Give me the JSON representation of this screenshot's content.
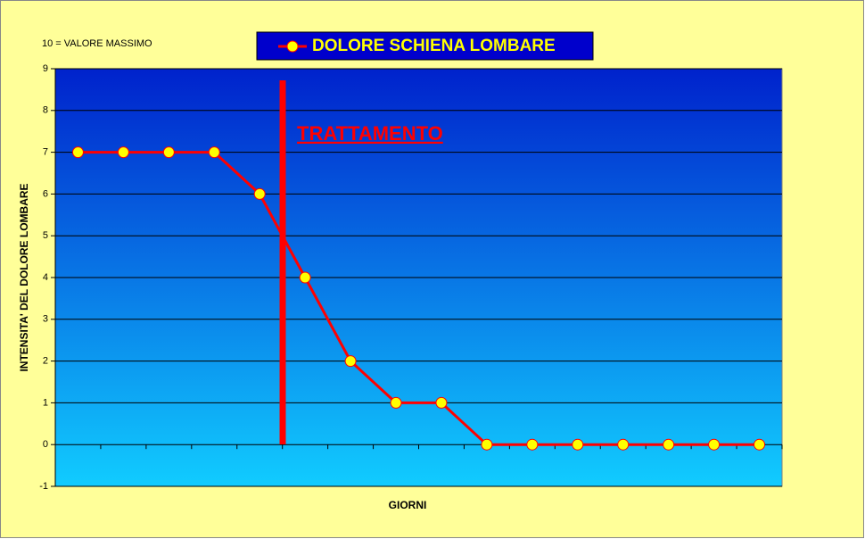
{
  "chart_data": {
    "type": "line",
    "annotations": [
      "10 = VALORE MASSIMO",
      "TRATTAMENTO"
    ],
    "x_label": "GIORNI",
    "y_label": "INTENSITA' DEL DOLORE LOMBARE",
    "categories": [
      null,
      null,
      null,
      null,
      null,
      null,
      null,
      null,
      null,
      null,
      null,
      null,
      null,
      null,
      null,
      null
    ],
    "series": [
      {
        "name": "DOLORE SCHIENA LOMBARE",
        "color": "#ff0000",
        "marker_color": "#ffff00",
        "values": [
          7,
          7,
          7,
          7,
          6,
          4,
          2,
          1,
          1,
          0,
          0,
          0,
          0,
          0,
          0,
          0
        ]
      }
    ],
    "ylim": [
      -1,
      9
    ],
    "yticks": [
      -1,
      0,
      1,
      2,
      3,
      4,
      5,
      6,
      7,
      8,
      9
    ],
    "grid": true,
    "legend": "top"
  }
}
